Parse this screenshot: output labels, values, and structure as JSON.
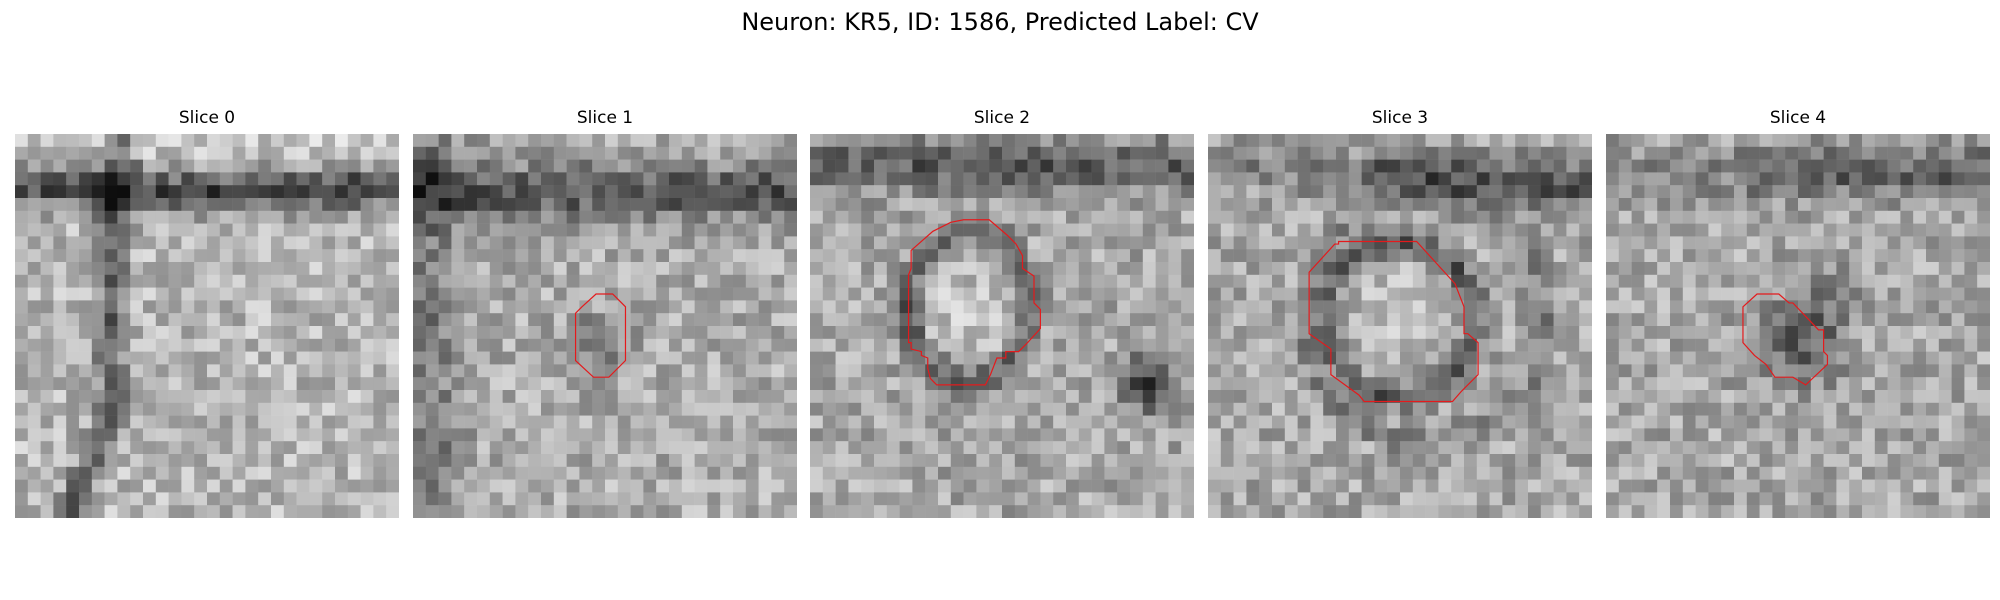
{
  "figure": {
    "title": "Neuron: KR5, ID: 1586, Predicted Label: CV",
    "grid_size": 30,
    "contour_color": "#e41a1c"
  },
  "slices": [
    {
      "title": "Slice 0",
      "has_contour": false
    },
    {
      "title": "Slice 1",
      "has_contour": true
    },
    {
      "title": "Slice 2",
      "has_contour": true
    },
    {
      "title": "Slice 3",
      "has_contour": true
    },
    {
      "title": "Slice 4",
      "has_contour": true
    }
  ]
}
